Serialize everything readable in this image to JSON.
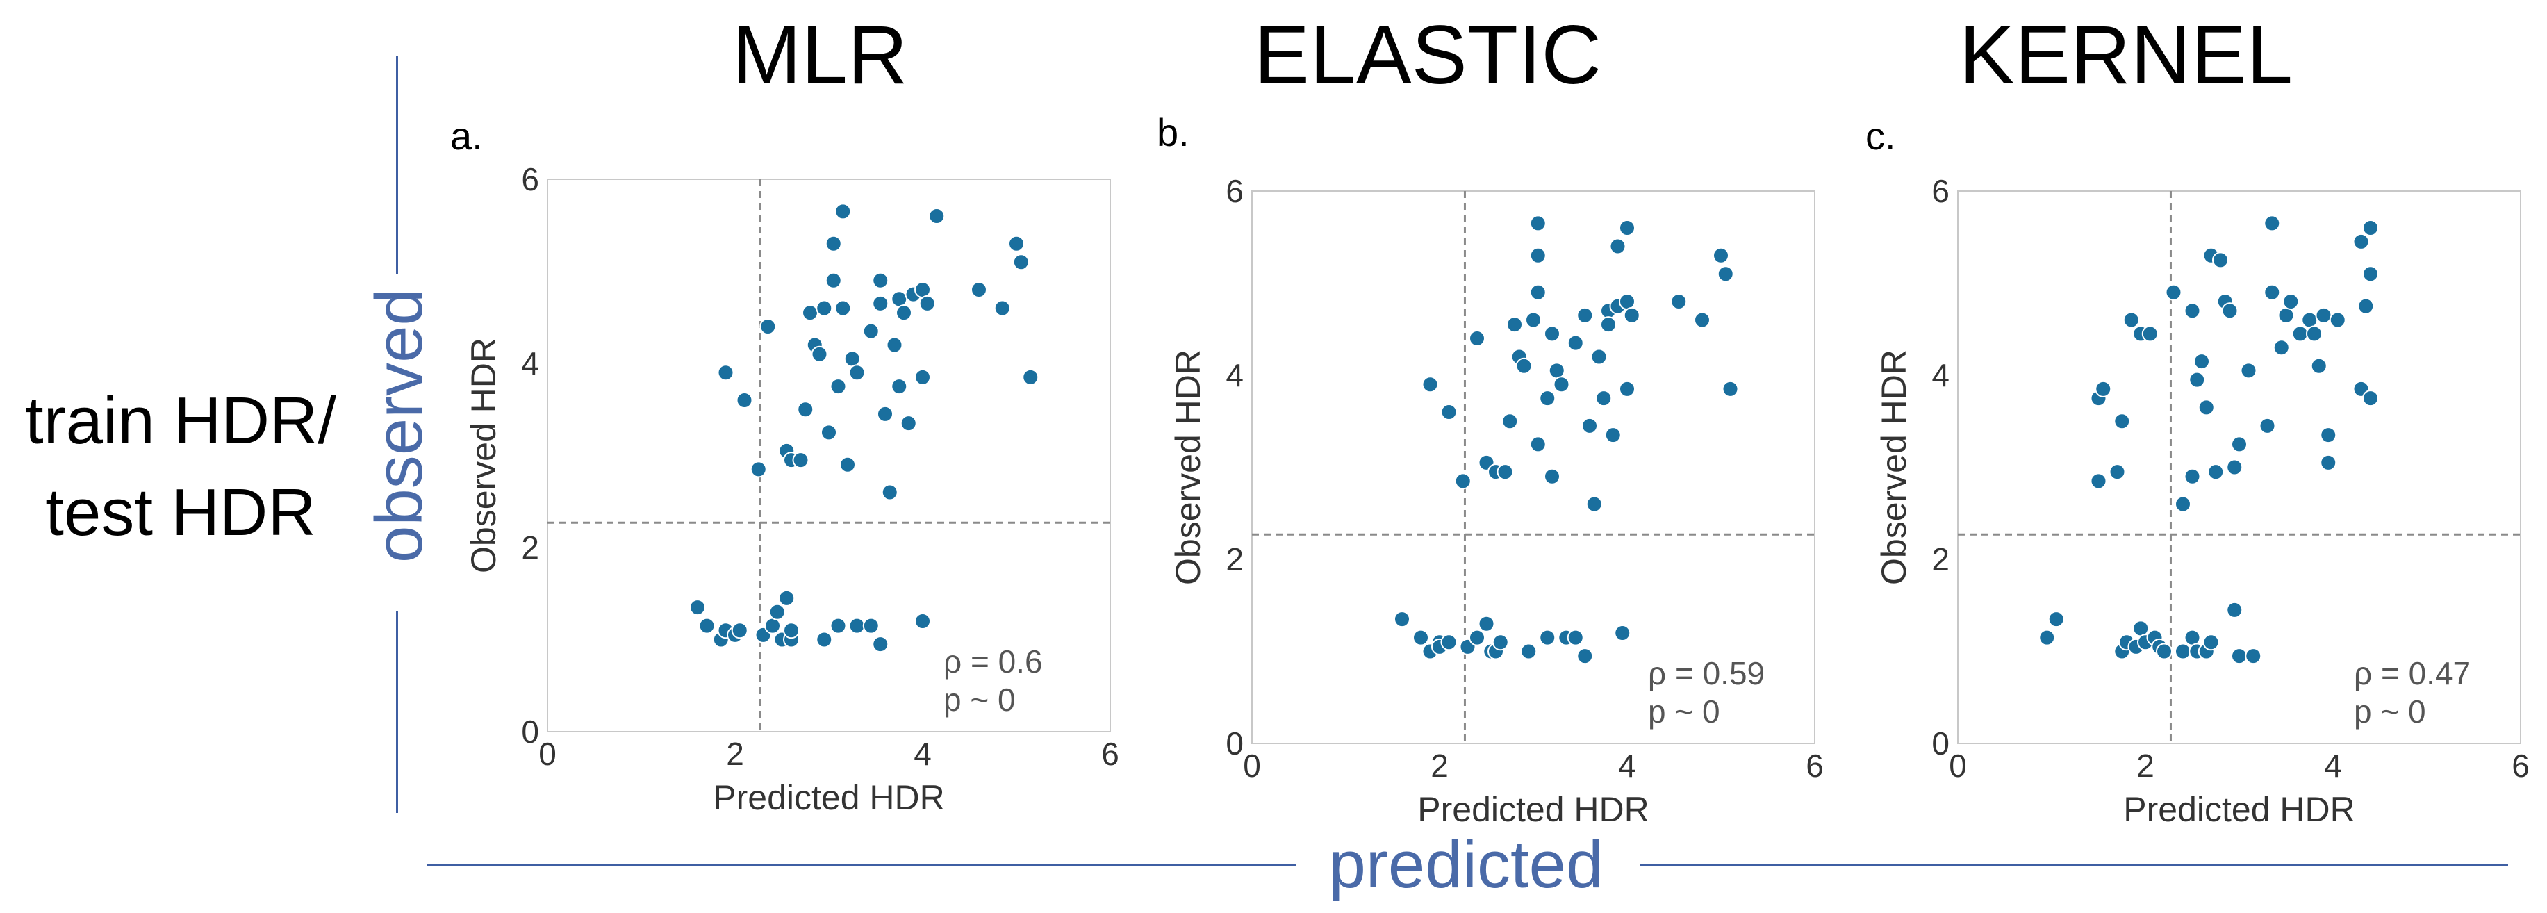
{
  "labels": {
    "row_label_line1": "train HDR/",
    "row_label_line2": "test HDR",
    "observed": "observed",
    "predicted": "predicted"
  },
  "colors": {
    "point": "#1a6f9e",
    "guide": "#8a8a8a",
    "accent": "#4a6aa8"
  },
  "chart_data": [
    {
      "type": "scatter",
      "model": "MLR",
      "panel": "a.",
      "xlabel": "Predicted HDR",
      "ylabel": "Observed HDR",
      "xlim": [
        0,
        6
      ],
      "ylim": [
        0,
        6
      ],
      "xticks": [
        "0",
        "2",
        "4",
        "6"
      ],
      "yticks": [
        "0",
        "2",
        "4",
        "6"
      ],
      "vline": 2.27,
      "hline": 2.27,
      "rho": "ρ = 0.6",
      "p": "p ~ 0",
      "points": [
        [
          1.6,
          1.35
        ],
        [
          1.7,
          1.15
        ],
        [
          1.85,
          1.0
        ],
        [
          1.9,
          1.1
        ],
        [
          2.0,
          1.05
        ],
        [
          2.05,
          1.1
        ],
        [
          2.3,
          1.05
        ],
        [
          2.4,
          1.15
        ],
        [
          2.45,
          1.3
        ],
        [
          2.5,
          1.0
        ],
        [
          2.55,
          1.45
        ],
        [
          2.6,
          1.0
        ],
        [
          2.6,
          1.1
        ],
        [
          2.95,
          1.0
        ],
        [
          3.1,
          1.15
        ],
        [
          3.3,
          1.15
        ],
        [
          3.45,
          1.15
        ],
        [
          3.55,
          0.95
        ],
        [
          4.0,
          1.2
        ],
        [
          1.9,
          3.9
        ],
        [
          2.1,
          3.6
        ],
        [
          2.25,
          2.85
        ],
        [
          2.35,
          4.4
        ],
        [
          2.55,
          3.05
        ],
        [
          2.6,
          2.95
        ],
        [
          2.7,
          2.95
        ],
        [
          2.75,
          3.5
        ],
        [
          2.8,
          4.55
        ],
        [
          2.85,
          4.2
        ],
        [
          2.9,
          4.1
        ],
        [
          2.95,
          4.6
        ],
        [
          3.0,
          3.25
        ],
        [
          3.05,
          4.9
        ],
        [
          3.1,
          3.75
        ],
        [
          3.15,
          4.6
        ],
        [
          3.2,
          2.9
        ],
        [
          3.25,
          4.05
        ],
        [
          3.3,
          3.9
        ],
        [
          3.45,
          4.35
        ],
        [
          3.55,
          4.65
        ],
        [
          3.6,
          3.45
        ],
        [
          3.65,
          2.6
        ],
        [
          3.7,
          4.2
        ],
        [
          3.75,
          3.75
        ],
        [
          3.75,
          4.7
        ],
        [
          3.8,
          4.55
        ],
        [
          3.85,
          3.35
        ],
        [
          3.9,
          4.75
        ],
        [
          4.0,
          3.85
        ],
        [
          4.0,
          4.8
        ],
        [
          4.05,
          4.65
        ],
        [
          4.15,
          5.6
        ],
        [
          4.6,
          4.8
        ],
        [
          4.85,
          4.6
        ],
        [
          5.0,
          5.3
        ],
        [
          5.05,
          5.1
        ],
        [
          5.15,
          3.85
        ],
        [
          3.15,
          5.65
        ],
        [
          3.05,
          5.3
        ],
        [
          3.55,
          4.9
        ]
      ]
    },
    {
      "type": "scatter",
      "model": "ELASTIC",
      "panel": "b.",
      "xlabel": "Predicted HDR",
      "ylabel": "Observed HDR",
      "xlim": [
        0,
        6
      ],
      "ylim": [
        0,
        6
      ],
      "xticks": [
        "0",
        "2",
        "4",
        "6"
      ],
      "yticks": [
        "0",
        "2",
        "4",
        "6"
      ],
      "vline": 2.27,
      "hline": 2.27,
      "rho": "ρ = 0.59",
      "p": "p ~ 0",
      "points": [
        [
          1.6,
          1.35
        ],
        [
          1.8,
          1.15
        ],
        [
          1.9,
          1.0
        ],
        [
          2.0,
          1.1
        ],
        [
          2.0,
          1.05
        ],
        [
          2.1,
          1.1
        ],
        [
          2.3,
          1.05
        ],
        [
          2.4,
          1.15
        ],
        [
          2.5,
          1.3
        ],
        [
          2.55,
          1.0
        ],
        [
          2.6,
          1.0
        ],
        [
          2.65,
          1.1
        ],
        [
          2.95,
          1.0
        ],
        [
          3.15,
          1.15
        ],
        [
          3.35,
          1.15
        ],
        [
          3.45,
          1.15
        ],
        [
          3.55,
          0.95
        ],
        [
          3.95,
          1.2
        ],
        [
          1.9,
          3.9
        ],
        [
          2.1,
          3.6
        ],
        [
          2.25,
          2.85
        ],
        [
          2.4,
          4.4
        ],
        [
          2.5,
          3.05
        ],
        [
          2.6,
          2.95
        ],
        [
          2.7,
          2.95
        ],
        [
          2.75,
          3.5
        ],
        [
          2.8,
          4.55
        ],
        [
          2.85,
          4.2
        ],
        [
          2.9,
          4.1
        ],
        [
          3.0,
          4.6
        ],
        [
          3.05,
          3.25
        ],
        [
          3.05,
          4.9
        ],
        [
          3.15,
          3.75
        ],
        [
          3.2,
          4.45
        ],
        [
          3.2,
          2.9
        ],
        [
          3.25,
          4.05
        ],
        [
          3.3,
          3.9
        ],
        [
          3.45,
          4.35
        ],
        [
          3.55,
          4.65
        ],
        [
          3.6,
          3.45
        ],
        [
          3.65,
          2.6
        ],
        [
          3.7,
          4.2
        ],
        [
          3.75,
          3.75
        ],
        [
          3.8,
          4.7
        ],
        [
          3.8,
          4.55
        ],
        [
          3.85,
          3.35
        ],
        [
          3.9,
          4.75
        ],
        [
          4.0,
          3.85
        ],
        [
          4.0,
          4.8
        ],
        [
          4.05,
          4.65
        ],
        [
          4.0,
          5.6
        ],
        [
          4.55,
          4.8
        ],
        [
          4.8,
          4.6
        ],
        [
          5.0,
          5.3
        ],
        [
          5.05,
          5.1
        ],
        [
          5.1,
          3.85
        ],
        [
          3.05,
          5.65
        ],
        [
          3.05,
          5.3
        ],
        [
          3.9,
          5.4
        ]
      ]
    },
    {
      "type": "scatter",
      "model": "KERNEL",
      "panel": "c.",
      "xlabel": "Predicted HDR",
      "ylabel": "Observed HDR",
      "xlim": [
        0,
        6
      ],
      "ylim": [
        0,
        6
      ],
      "xticks": [
        "0",
        "2",
        "4",
        "6"
      ],
      "yticks": [
        "0",
        "2",
        "4",
        "6"
      ],
      "vline": 2.27,
      "hline": 2.27,
      "rho": "ρ = 0.47",
      "p": "p ~ 0",
      "points": [
        [
          0.95,
          1.15
        ],
        [
          1.05,
          1.35
        ],
        [
          1.75,
          1.0
        ],
        [
          1.8,
          1.1
        ],
        [
          1.9,
          1.05
        ],
        [
          1.95,
          1.25
        ],
        [
          2.0,
          1.1
        ],
        [
          2.1,
          1.15
        ],
        [
          2.15,
          1.05
        ],
        [
          2.2,
          1.0
        ],
        [
          2.4,
          1.0
        ],
        [
          2.5,
          1.15
        ],
        [
          2.55,
          1.0
        ],
        [
          2.65,
          1.0
        ],
        [
          2.7,
          1.1
        ],
        [
          2.95,
          1.45
        ],
        [
          3.0,
          0.95
        ],
        [
          3.15,
          0.95
        ],
        [
          1.5,
          3.75
        ],
        [
          1.5,
          2.85
        ],
        [
          1.55,
          3.85
        ],
        [
          1.7,
          2.95
        ],
        [
          1.75,
          3.5
        ],
        [
          1.85,
          4.6
        ],
        [
          1.95,
          4.45
        ],
        [
          2.05,
          4.45
        ],
        [
          2.3,
          4.9
        ],
        [
          2.4,
          2.6
        ],
        [
          2.5,
          4.7
        ],
        [
          2.5,
          2.9
        ],
        [
          2.55,
          3.95
        ],
        [
          2.6,
          4.15
        ],
        [
          2.65,
          3.65
        ],
        [
          2.7,
          5.3
        ],
        [
          2.75,
          2.95
        ],
        [
          2.8,
          5.25
        ],
        [
          2.85,
          4.8
        ],
        [
          2.9,
          4.7
        ],
        [
          2.95,
          3.0
        ],
        [
          3.0,
          3.25
        ],
        [
          3.1,
          4.05
        ],
        [
          3.3,
          3.45
        ],
        [
          3.35,
          4.9
        ],
        [
          3.45,
          4.3
        ],
        [
          3.5,
          4.65
        ],
        [
          3.55,
          4.8
        ],
        [
          3.65,
          4.45
        ],
        [
          3.75,
          4.6
        ],
        [
          3.8,
          4.45
        ],
        [
          3.85,
          4.1
        ],
        [
          3.9,
          4.65
        ],
        [
          3.95,
          3.35
        ],
        [
          3.95,
          3.05
        ],
        [
          4.05,
          4.6
        ],
        [
          4.3,
          5.45
        ],
        [
          4.3,
          3.85
        ],
        [
          4.35,
          4.75
        ],
        [
          4.4,
          5.6
        ],
        [
          4.4,
          5.1
        ],
        [
          4.4,
          3.75
        ],
        [
          3.35,
          5.65
        ]
      ]
    }
  ]
}
